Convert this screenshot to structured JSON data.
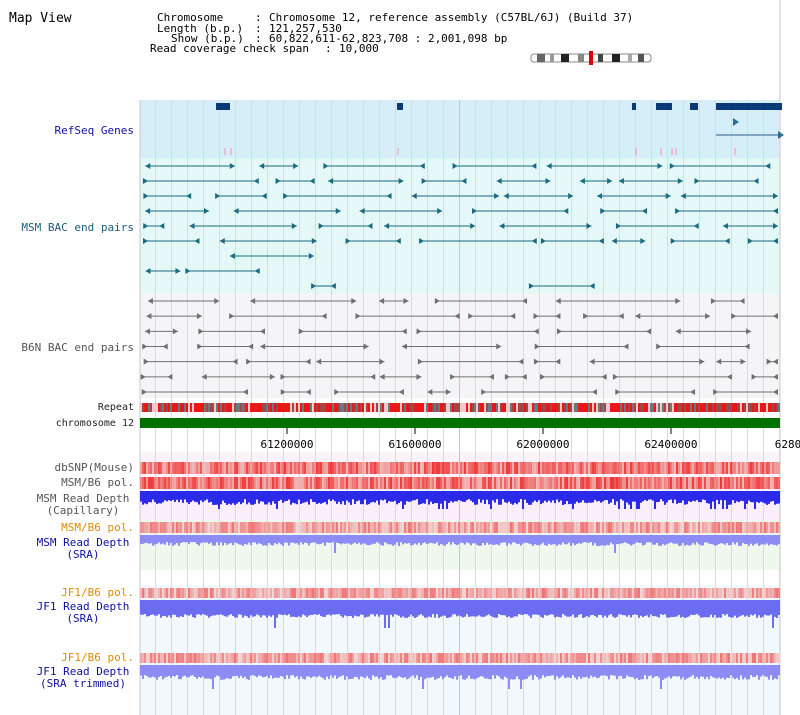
{
  "page": {
    "title": "Map View"
  },
  "info": {
    "chromosome_key": "Chromosome",
    "chromosome_value": "Chromosome 12, reference assembly (C57BL/6J) (Build 37)",
    "length_key": "Length (b.p.)",
    "length_value": "121,257,530",
    "show_key": "Show (b.p.)",
    "show_value": "60,822,611-62,823,708 : 2,001,098 bp",
    "coverage_key": "Read coverage check span",
    "coverage_value": "10,000"
  },
  "tracks": {
    "refseq": "RefSeq Genes",
    "msm_bac": "MSM BAC end pairs",
    "b6n_bac": "B6N BAC end pairs",
    "repeat": "Repeat",
    "chromosome": "chromosome 12",
    "dbsnp": "dbSNP(Mouse)",
    "msm_b6_pol_1": "MSM/B6 pol.",
    "msm_depth_cap_1": "MSM Read Depth",
    "msm_depth_cap_2": "(Capillary)",
    "msm_b6_pol_2": "MSM/B6 pol.",
    "msm_depth_sra_1": "MSM Read Depth",
    "msm_depth_sra_2": "(SRA)",
    "jf1_b6_pol_1": "JF1/B6 pol.",
    "jf1_depth_sra_1": "JF1 Read Depth",
    "jf1_depth_sra_2": "(SRA)",
    "jf1_b6_pol_2": "JF1/B6 pol.",
    "jf1_depth_trim_1": "JF1 Read Depth",
    "jf1_depth_trim_2": "(SRA trimmed)"
  },
  "axis": {
    "ticks": [
      "61200000",
      "61600000",
      "62000000",
      "62400000",
      "6280"
    ]
  },
  "colors": {
    "refseq_bg": "#d6eefa",
    "msm_bg": "#e4f8f8",
    "b6n_bg": "#f5f5f8",
    "chromosome_bar": "#007000",
    "depth_blue": "#2a2ae8",
    "depth_light": "#8c8cf4",
    "pol_red": "#ee3030",
    "pink_bg": "#fbeefa",
    "green_bg": "#eef8ec"
  }
}
